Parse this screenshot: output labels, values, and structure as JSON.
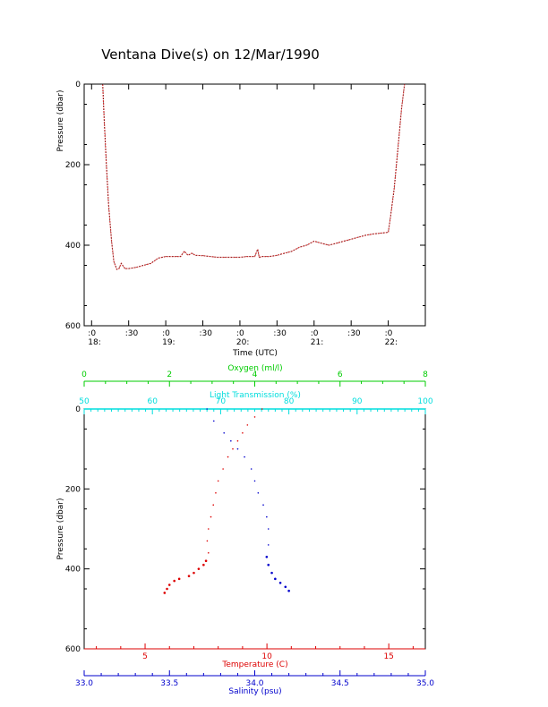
{
  "title": "Ventana Dive(s) on 12/Mar/1990",
  "colors": {
    "axis": "#000000",
    "track": "#d03030",
    "temperature": "#dd0000",
    "salinity": "#0000cc",
    "oxygen": "#00cc00",
    "light": "#00dddd"
  },
  "chart_data": [
    {
      "type": "line",
      "title": "Ventana Dive(s) on 12/Mar/1990",
      "xlabel": "Time (UTC)",
      "ylabel": "Pressure (dbar)",
      "ylim": [
        600,
        0
      ],
      "y_ticks": [
        "0",
        "200",
        "400",
        "600"
      ],
      "x_range_hours": [
        17.9,
        22.5
      ],
      "x_ticks": [
        {
          "t": 18.0,
          "label": ":0",
          "sub": "18:"
        },
        {
          "t": 18.5,
          "label": ":30",
          "sub": ""
        },
        {
          "t": 19.0,
          "label": ":0",
          "sub": "19:"
        },
        {
          "t": 19.5,
          "label": ":30",
          "sub": ""
        },
        {
          "t": 20.0,
          "label": ":0",
          "sub": "20:"
        },
        {
          "t": 20.5,
          "label": ":30",
          "sub": ""
        },
        {
          "t": 21.0,
          "label": ":0",
          "sub": "21:"
        },
        {
          "t": 21.5,
          "label": ":30",
          "sub": ""
        },
        {
          "t": 22.0,
          "label": ":0",
          "sub": "22:"
        }
      ],
      "series": [
        {
          "x": [
            18.15,
            18.17,
            18.2,
            18.23,
            18.27,
            18.3,
            18.34,
            18.37,
            18.4,
            18.45,
            18.5,
            18.6,
            18.7,
            18.8,
            18.9,
            19.0,
            19.1,
            19.2,
            19.25,
            19.3,
            19.35,
            19.4,
            19.5,
            19.6,
            19.7,
            19.8,
            19.9,
            20.0,
            20.1,
            20.2,
            20.24,
            20.26,
            20.3,
            20.4,
            20.5,
            20.6,
            20.7,
            20.8,
            20.9,
            21.0,
            21.1,
            21.2,
            21.3,
            21.4,
            21.5,
            21.6,
            21.7,
            21.8,
            21.9,
            22.0,
            22.03,
            22.08,
            22.13,
            22.18,
            22.22
          ],
          "y": [
            0,
            90,
            200,
            300,
            390,
            440,
            460,
            458,
            445,
            458,
            458,
            455,
            450,
            445,
            432,
            428,
            428,
            428,
            415,
            425,
            420,
            425,
            426,
            428,
            430,
            430,
            430,
            430,
            428,
            428,
            410,
            430,
            428,
            428,
            425,
            420,
            415,
            405,
            400,
            390,
            395,
            400,
            395,
            390,
            385,
            380,
            375,
            372,
            370,
            368,
            330,
            260,
            160,
            60,
            0
          ]
        }
      ]
    },
    {
      "type": "scatter",
      "ylabel": "Pressure (dbar)",
      "ylim": [
        600,
        0
      ],
      "y_ticks": [
        "0",
        "200",
        "400",
        "600"
      ],
      "axes": {
        "temperature": {
          "label": "Temperature (C)",
          "range": [
            2.5,
            16.5
          ],
          "ticks": [
            5,
            10,
            15
          ],
          "tick_labels": [
            "5",
            "10",
            "15"
          ]
        },
        "salinity": {
          "label": "Salinity (psu)",
          "range": [
            33.0,
            35.0
          ],
          "ticks": [
            33.0,
            33.5,
            34.0,
            34.5,
            35.0
          ],
          "tick_labels": [
            "33.0",
            "33.5",
            "34.0",
            "34.5",
            "35.0"
          ]
        },
        "oxygen": {
          "label": "Oxygen (ml/l)",
          "range": [
            0,
            8
          ],
          "ticks": [
            0,
            2,
            4,
            6,
            8
          ],
          "tick_labels": [
            "0",
            "2",
            "4",
            "6",
            "8"
          ]
        },
        "light": {
          "label": "Light Transmission (%)",
          "range": [
            50,
            100
          ],
          "ticks": [
            50,
            60,
            70,
            80,
            90,
            100
          ],
          "tick_labels": [
            "50",
            "60",
            "70",
            "80",
            "90",
            "100"
          ]
        }
      },
      "series": [
        {
          "name": "Temperature",
          "x": [
            9.8,
            9.5,
            9.2,
            9.0,
            8.8,
            8.6,
            8.4,
            8.2,
            8.0,
            7.9,
            7.8,
            7.7,
            7.6,
            7.55,
            7.6,
            7.5,
            7.4,
            7.2,
            7.0,
            6.8,
            6.4,
            6.2,
            6.0,
            5.9,
            5.8
          ],
          "y": [
            0,
            20,
            40,
            60,
            80,
            100,
            120,
            150,
            180,
            210,
            240,
            270,
            300,
            330,
            360,
            380,
            390,
            400,
            410,
            418,
            425,
            430,
            440,
            450,
            460
          ]
        },
        {
          "name": "Salinity",
          "x": [
            33.72,
            33.76,
            33.82,
            33.86,
            33.9,
            33.94,
            33.98,
            34.0,
            34.02,
            34.05,
            34.07,
            34.08,
            34.08,
            34.07,
            34.08,
            34.1,
            34.12,
            34.15,
            34.18,
            34.2
          ],
          "y": [
            0,
            30,
            60,
            80,
            100,
            120,
            150,
            180,
            210,
            240,
            270,
            300,
            340,
            370,
            390,
            410,
            425,
            435,
            445,
            455
          ]
        }
      ]
    }
  ]
}
